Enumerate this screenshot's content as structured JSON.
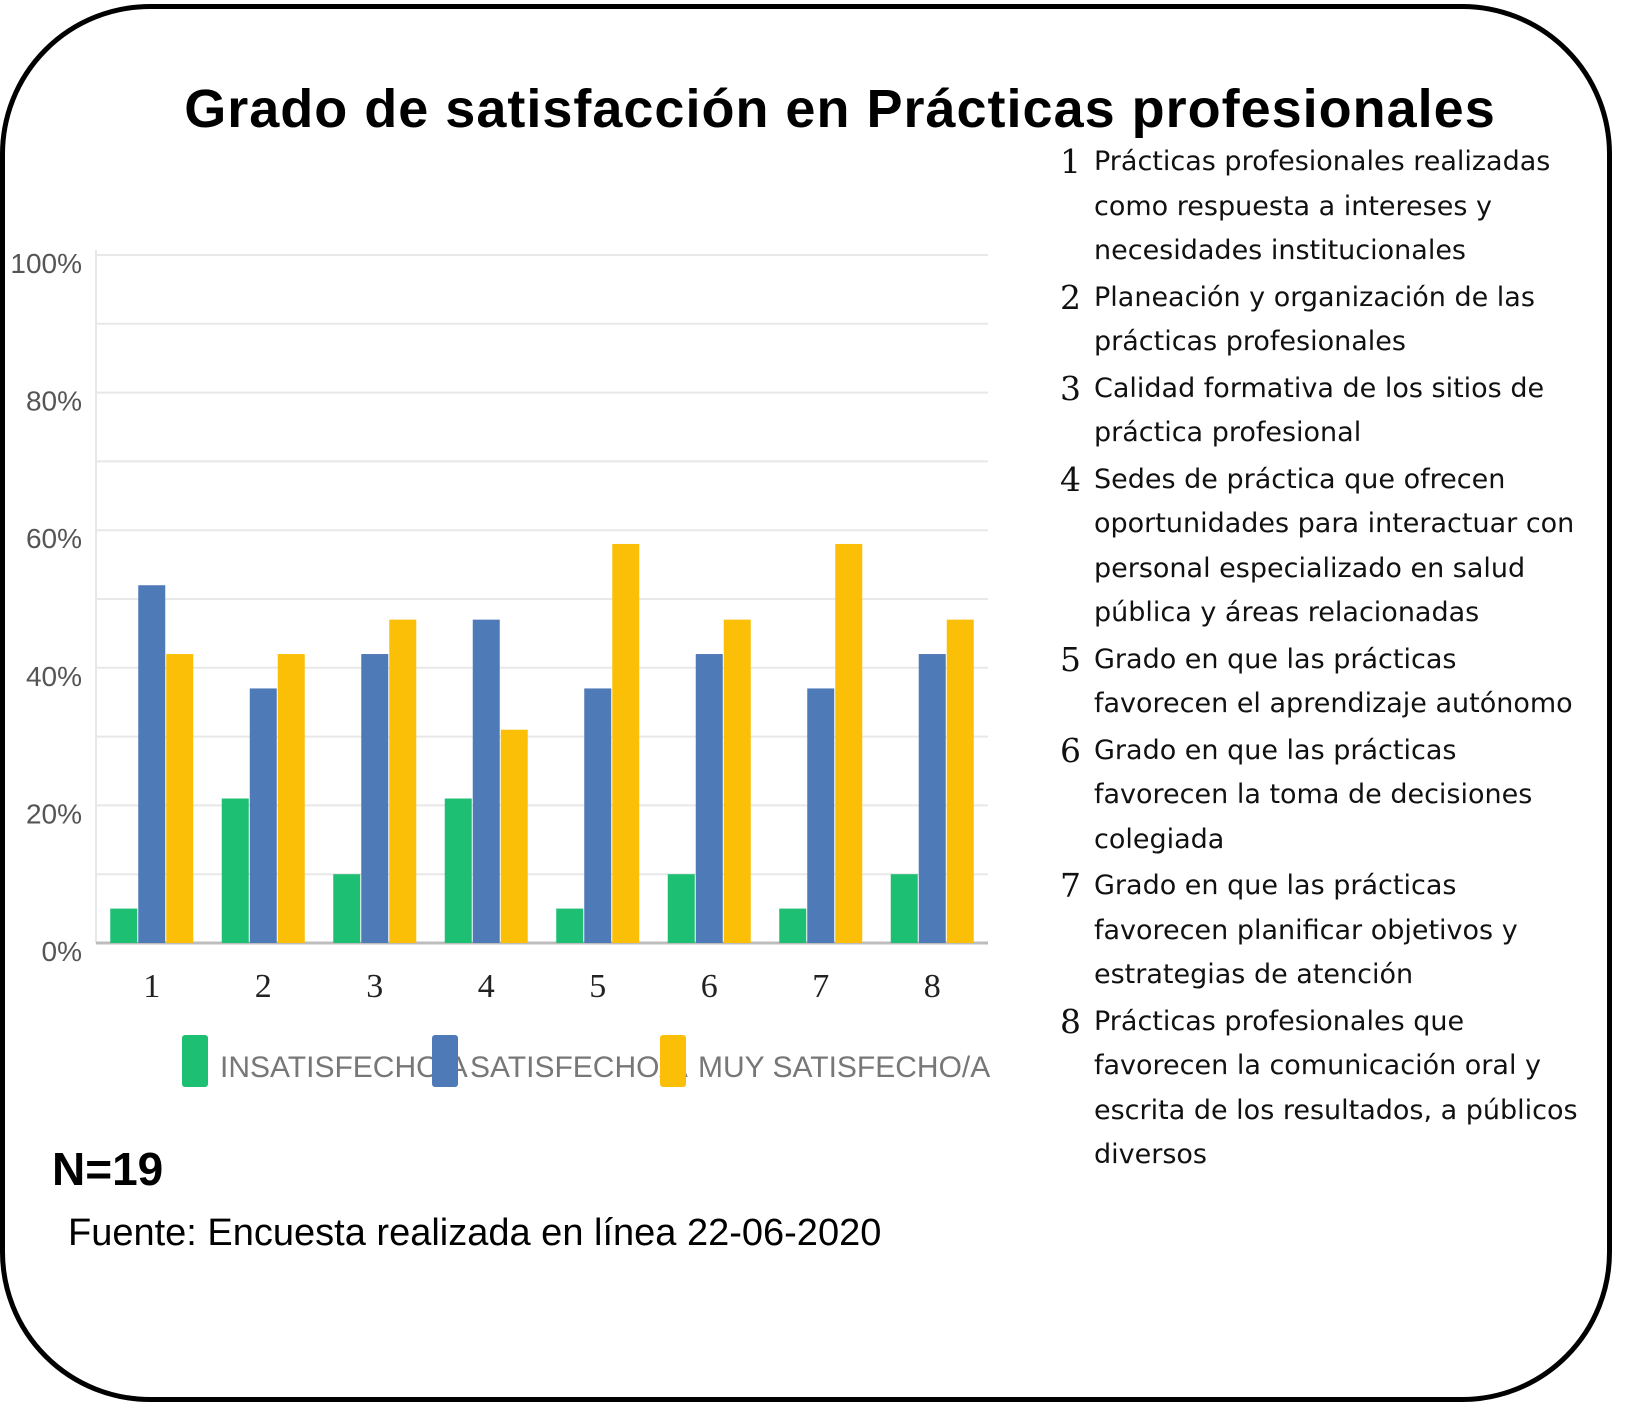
{
  "title": "Grado de satisfacción en Prácticas profesionales",
  "n_label": "N=19",
  "source": "Fuente: Encuesta realizada en línea 22-06-2020",
  "colors": {
    "insatisfecho": "#1dbf73",
    "satisfecho": "#4f7ab8",
    "muy_satisfecho": "#fbbf07",
    "grid": "#e8e8e8",
    "axis": "#bdbdbd"
  },
  "chart_data": {
    "type": "bar",
    "title": "Grado de satisfacción en Prácticas profesionales",
    "categories": [
      "1",
      "2",
      "3",
      "4",
      "5",
      "6",
      "7",
      "8"
    ],
    "series": [
      {
        "name": "INSATISFECHO/A",
        "values": [
          5,
          21,
          10,
          21,
          5,
          10,
          5,
          10
        ]
      },
      {
        "name": "SATISFECHO/A",
        "values": [
          52,
          37,
          42,
          47,
          37,
          42,
          37,
          42
        ]
      },
      {
        "name": "MUY SATISFECHO/A",
        "values": [
          42,
          42,
          47,
          31,
          58,
          47,
          58,
          47
        ]
      }
    ],
    "y_ticks": [
      "0%",
      "20%",
      "40%",
      "60%",
      "80%",
      "100%"
    ],
    "ylim": [
      0,
      100
    ],
    "xlabel": "",
    "ylabel": "",
    "grid": true,
    "legend_position": "bottom"
  },
  "notes": [
    {
      "num": "1",
      "text": "Prácticas profesionales realizadas como respuesta a intereses y necesidades institucionales"
    },
    {
      "num": "2",
      "text": "Planeación y organización de las prácticas profesionales"
    },
    {
      "num": "3",
      "text": "Calidad formativa de los sitios de práctica profesional"
    },
    {
      "num": "4",
      "text": "Sedes de práctica que ofrecen oportunidades para interactuar con personal especializado en salud pública y áreas relacionadas"
    },
    {
      "num": "5",
      "text": "Grado en que las prácticas favorecen el aprendizaje autónomo"
    },
    {
      "num": "6",
      "text": "Grado en que las prácticas favorecen la toma de decisiones colegiada"
    },
    {
      "num": "7",
      "text": "Grado en que las prácticas favorecen planificar objetivos y estrategias de atención"
    },
    {
      "num": "8",
      "text": "Prácticas profesionales que favorecen la comunicación oral y escrita de los resultados, a públicos diversos"
    }
  ]
}
